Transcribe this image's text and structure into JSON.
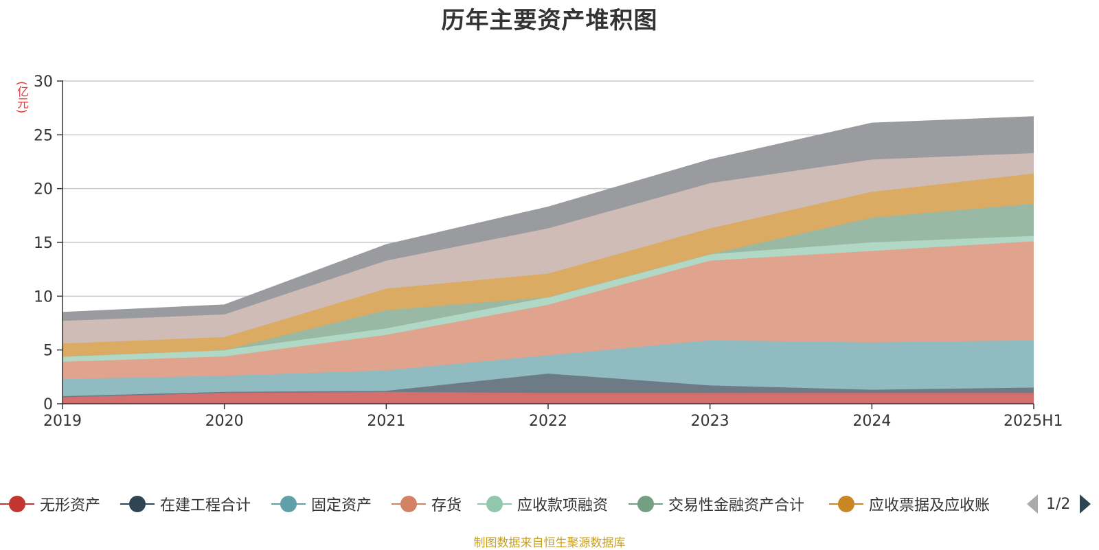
{
  "title": "历年主要资产堆积图",
  "source_note": "制图数据来自恒生聚源数据库",
  "legend_page": "1/2",
  "chart_data": {
    "type": "area",
    "stacked": true,
    "title": "历年主要资产堆积图",
    "ylabel": "(亿元)",
    "ylim": [
      0,
      30
    ],
    "yticks": [
      "0",
      "5",
      "10",
      "15",
      "20",
      "25",
      "30"
    ],
    "categories": [
      "2019",
      "2020",
      "2021",
      "2022",
      "2023",
      "2024",
      "2025H1"
    ],
    "grid": true,
    "legend_position": "bottom",
    "series": [
      {
        "name": "无形资产",
        "color": "#c23531",
        "fill": "#d3706d",
        "values": [
          0.6,
          1.0,
          1.1,
          1.0,
          1.0,
          1.0,
          1.0
        ],
        "legend": true
      },
      {
        "name": "在建工程合计",
        "color": "#2f4554",
        "fill": "#6d7b86",
        "values": [
          0.1,
          0.1,
          0.1,
          1.8,
          0.7,
          0.3,
          0.5
        ],
        "legend": true
      },
      {
        "name": "固定资产",
        "color": "#61a0a8",
        "fill": "#90bbc0",
        "values": [
          1.6,
          1.5,
          1.9,
          1.7,
          4.2,
          4.4,
          4.4
        ],
        "legend": true
      },
      {
        "name": "存货",
        "color": "#d48265",
        "fill": "#e0a38d",
        "values": [
          1.6,
          1.8,
          3.3,
          4.7,
          7.4,
          8.5,
          9.2
        ],
        "legend": true
      },
      {
        "name": "应收款项融资",
        "color": "#91c7ae",
        "fill": "#b0d8c5",
        "values": [
          0.5,
          0.6,
          0.6,
          0.7,
          0.6,
          0.8,
          0.5
        ],
        "legend": true
      },
      {
        "name": "交易性金融资产合计",
        "color": "#749f83",
        "fill": "#9ab9a4",
        "values": [
          0.0,
          0.0,
          1.7,
          0.0,
          0.0,
          2.3,
          3.0
        ],
        "legend": true
      },
      {
        "name": "应收票据及应收账",
        "color": "#ca8622",
        "fill": "#dbab63",
        "values": [
          1.2,
          1.2,
          2.0,
          2.2,
          2.4,
          2.4,
          2.8
        ],
        "legend": true
      },
      {
        "name": "",
        "color": "#bda29a",
        "fill": "#d0bcb6",
        "values": [
          2.1,
          2.1,
          2.6,
          4.2,
          4.2,
          3.0,
          1.9
        ],
        "legend": false
      },
      {
        "name": "",
        "color": "#6e7074",
        "fill": "#9a9b9f",
        "values": [
          0.8,
          0.9,
          1.5,
          2.0,
          2.2,
          3.4,
          3.4
        ],
        "legend": false
      }
    ]
  }
}
